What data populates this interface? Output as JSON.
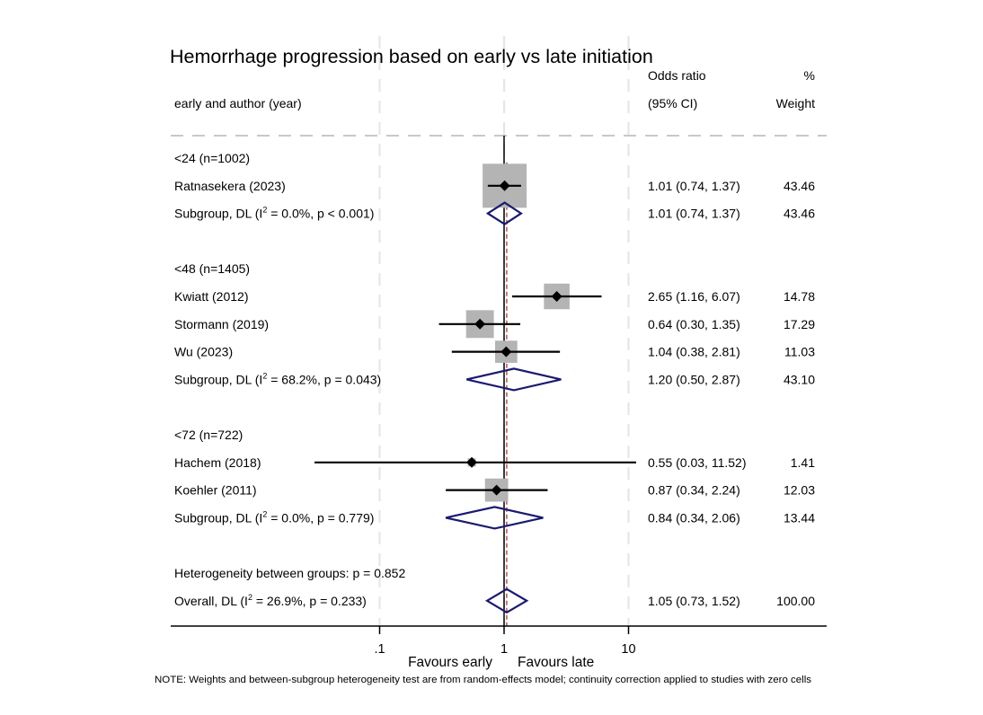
{
  "chart_data": {
    "type": "forest",
    "title": "Hemorrhage progression based on early vs late initiation",
    "columns": {
      "study_header": "early and author (year)",
      "or_header_line1": "Odds ratio",
      "or_header_line2": "(95% CI)",
      "weight_header_line1": "%",
      "weight_header_line2": "Weight"
    },
    "x_axis": {
      "scale": "log",
      "ticks": [
        {
          "value": 0.1,
          "label": ".1"
        },
        {
          "value": 1,
          "label": "1"
        },
        {
          "value": 10,
          "label": "10"
        }
      ],
      "range": [
        0.027,
        12
      ],
      "null_value": 1,
      "favours_left": "Favours early",
      "favours_right": "Favours late",
      "grid": true
    },
    "rows": [
      {
        "kind": "group",
        "label": "<24 (n=1002)"
      },
      {
        "kind": "study",
        "label": "Ratnasekera (2023)",
        "or": 1.01,
        "lo": 0.74,
        "hi": 1.37,
        "or_text": "1.01 (0.74, 1.37)",
        "weight": 43.46,
        "weight_text": "43.46"
      },
      {
        "kind": "subgroup",
        "label_prefix": "Subgroup, DL (I",
        "label_sup": "2",
        "label_suffix": " = 0.0%, p < 0.001)",
        "or": 1.01,
        "lo": 0.74,
        "hi": 1.37,
        "or_text": "1.01 (0.74, 1.37)",
        "weight_text": "43.46"
      },
      {
        "kind": "spacer"
      },
      {
        "kind": "group",
        "label": "<48 (n=1405)"
      },
      {
        "kind": "study",
        "label": "Kwiatt (2012)",
        "or": 2.65,
        "lo": 1.16,
        "hi": 6.07,
        "or_text": "2.65 (1.16, 6.07)",
        "weight": 14.78,
        "weight_text": "14.78"
      },
      {
        "kind": "study",
        "label": "Stormann (2019)",
        "or": 0.64,
        "lo": 0.3,
        "hi": 1.35,
        "or_text": "0.64 (0.30, 1.35)",
        "weight": 17.29,
        "weight_text": "17.29"
      },
      {
        "kind": "study",
        "label": "Wu (2023)",
        "or": 1.04,
        "lo": 0.38,
        "hi": 2.81,
        "or_text": "1.04 (0.38, 2.81)",
        "weight": 11.03,
        "weight_text": "11.03"
      },
      {
        "kind": "subgroup",
        "label_prefix": "Subgroup, DL (I",
        "label_sup": "2",
        "label_suffix": " = 68.2%, p = 0.043)",
        "or": 1.2,
        "lo": 0.5,
        "hi": 2.87,
        "or_text": "1.20 (0.50, 2.87)",
        "weight_text": "43.10"
      },
      {
        "kind": "spacer"
      },
      {
        "kind": "group",
        "label": "<72 (n=722)"
      },
      {
        "kind": "study",
        "label": "Hachem (2018)",
        "or": 0.55,
        "lo": 0.03,
        "hi": 11.52,
        "or_text": "0.55 (0.03, 11.52)",
        "weight": 1.41,
        "weight_text": "1.41"
      },
      {
        "kind": "study",
        "label": "Koehler (2011)",
        "or": 0.87,
        "lo": 0.34,
        "hi": 2.24,
        "or_text": "0.87 (0.34, 2.24)",
        "weight": 12.03,
        "weight_text": "12.03"
      },
      {
        "kind": "subgroup",
        "label_prefix": "Subgroup, DL (I",
        "label_sup": "2",
        "label_suffix": " = 0.0%, p = 0.779)",
        "or": 0.84,
        "lo": 0.34,
        "hi": 2.06,
        "or_text": "0.84 (0.34, 2.06)",
        "weight_text": "13.44"
      },
      {
        "kind": "spacer"
      },
      {
        "kind": "text",
        "label": "Heterogeneity between groups: p = 0.852"
      },
      {
        "kind": "overall",
        "label_prefix": "Overall, DL (I",
        "label_sup": "2",
        "label_suffix": " = 26.9%, p = 0.233)",
        "or": 1.05,
        "lo": 0.73,
        "hi": 1.52,
        "or_text": "1.05 (0.73, 1.52)",
        "weight_text": "100.00"
      }
    ],
    "note": "NOTE: Weights and between-subgroup heterogeneity test are from random-effects model; continuity correction applied to studies with zero cells",
    "colors": {
      "box": "#b4b4b4",
      "point": "#000000",
      "ci": "#000000",
      "diamond": "#1a1a6e",
      "overall_line": "#a83a3a",
      "null_line": "#000000",
      "grid": "#e6e6e6",
      "separator": "#c8c8c8"
    }
  }
}
